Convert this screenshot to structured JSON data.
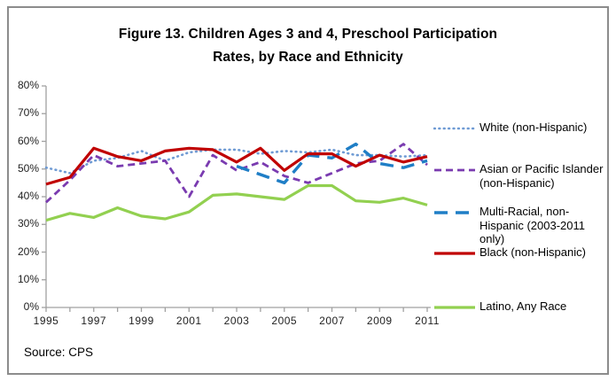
{
  "figure": {
    "source_note": "Source: CPS"
  },
  "chart_data": {
    "type": "line",
    "title": "Figure 13. Children Ages 3 and 4, Preschool Participation Rates, by Race and Ethnicity",
    "title_line1": "Figure 13. Children Ages 3 and 4, Preschool Participation",
    "title_line2": "Rates, by Race and Ethnicity",
    "xlabel": "",
    "ylabel": "",
    "x": [
      1995,
      1996,
      1997,
      1998,
      1999,
      2000,
      2001,
      2002,
      2003,
      2004,
      2005,
      2006,
      2007,
      2008,
      2009,
      2010,
      2011
    ],
    "xtick_labels": [
      "1995",
      "1997",
      "1999",
      "2001",
      "2003",
      "2005",
      "2007",
      "2009",
      "2011"
    ],
    "ytick_labels": [
      "0%",
      "10%",
      "20%",
      "30%",
      "40%",
      "50%",
      "60%",
      "70%",
      "80%"
    ],
    "ylim": [
      0,
      80
    ],
    "grid": false,
    "legend_position": "right",
    "series": [
      {
        "id": "white",
        "name": "White (non-Hispanic)",
        "legend_lines": [
          "White (non-Hispanic)"
        ],
        "color": "#6F9BD4",
        "style": "dotted",
        "values": [
          50.5,
          48.5,
          53,
          54,
          56.5,
          53,
          56,
          57,
          57,
          55.5,
          56.5,
          56,
          57,
          55,
          55,
          54.5,
          55
        ]
      },
      {
        "id": "asian-or-pacific-islander",
        "name": "Asian or Pacific Islander (non-Hispanic)",
        "legend_lines": [
          "Asian or Pacific Islander",
          "(non-Hispanic)"
        ],
        "color": "#7A3BB0",
        "style": "dashed",
        "values": [
          38,
          46,
          55,
          51,
          52,
          53,
          40,
          55,
          49.5,
          52.5,
          47.5,
          45,
          48.5,
          52,
          53,
          59,
          51.5
        ]
      },
      {
        "id": "multi-racial",
        "name": "Multi-Racial, non-Hispanic (2003-2011 only)",
        "legend_lines": [
          "Multi-Racial, non-",
          "Hispanic (2003-2011",
          "only)"
        ],
        "color": "#1F7EC6",
        "style": "longdash",
        "values": [
          null,
          null,
          null,
          null,
          null,
          null,
          null,
          null,
          51,
          48,
          45,
          55,
          54,
          59,
          52,
          50.5,
          53
        ]
      },
      {
        "id": "black",
        "name": "Black (non-Hispanic)",
        "legend_lines": [
          "Black (non-Hispanic)"
        ],
        "color": "#C00000",
        "style": "solid",
        "values": [
          44.5,
          47,
          57.5,
          54.5,
          53,
          56.5,
          57.5,
          57,
          52.5,
          57.5,
          49.5,
          55.5,
          55.5,
          51,
          55,
          52.5,
          54.5
        ]
      },
      {
        "id": "latino",
        "name": "Latino, Any Race",
        "legend_lines": [
          "Latino, Any Race"
        ],
        "color": "#92D050",
        "style": "solid",
        "values": [
          31.5,
          34,
          32.5,
          36,
          33,
          32,
          34.5,
          40.5,
          41,
          40,
          39,
          44,
          44,
          38.5,
          38,
          39.5,
          37
        ]
      }
    ],
    "axis_color": "#a0a0a0"
  }
}
